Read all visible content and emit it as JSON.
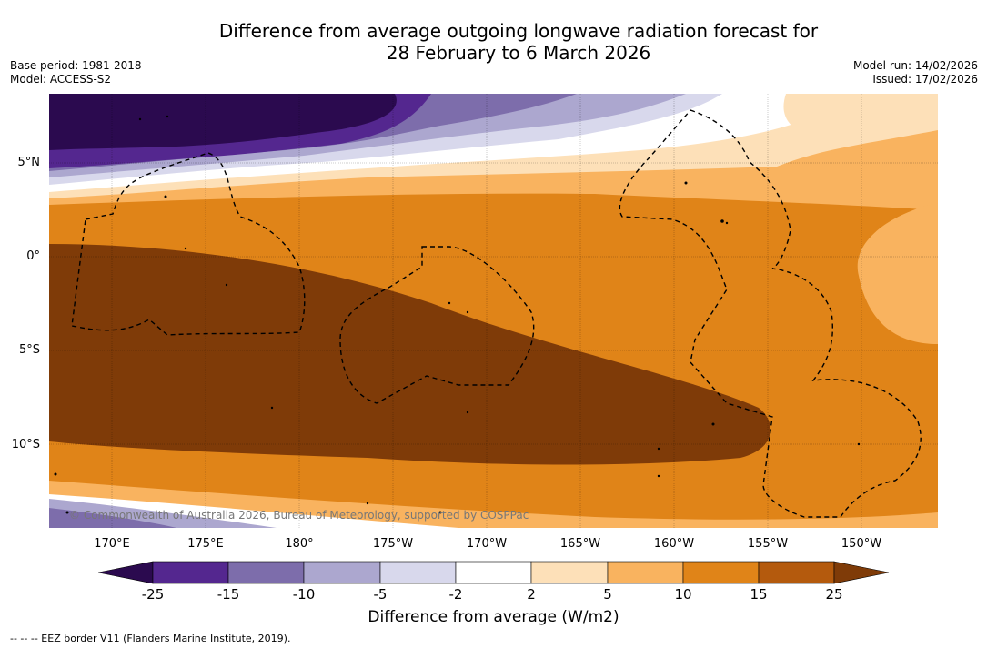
{
  "title": {
    "line1": "Difference from average outgoing longwave radiation forecast for",
    "line2": "28 February to 6 March 2026"
  },
  "meta": {
    "base_period": "Base period: 1981-2018",
    "model": "Model: ACCESS-S2",
    "model_run": "Model run: 14/02/2026",
    "issued": "Issued: 17/02/2026"
  },
  "axes": {
    "lat_labels": [
      "5°N",
      "0°",
      "5°S",
      "10°S"
    ],
    "lon_labels": [
      "170°E",
      "175°E",
      "180°",
      "175°W",
      "170°W",
      "165°W",
      "160°W",
      "155°W",
      "150°W"
    ]
  },
  "colorbar": {
    "ticks": [
      "-25",
      "-15",
      "-10",
      "-5",
      "-2",
      "2",
      "5",
      "10",
      "15",
      "25"
    ],
    "colors": [
      "#2b0a4f",
      "#54278f",
      "#7d6dab",
      "#aca7cf",
      "#d8d8ec",
      "#ffffff",
      "#fde0b8",
      "#f9b35f",
      "#e08418",
      "#b45a0d",
      "#7f3b08"
    ],
    "label": "Difference from average (W/m2)"
  },
  "copyright": "© Commonwealth of Australia 2026, Bureau of Meteorology, supported by COSPPac",
  "footnote": "--  --  -- EEZ border V11 (Flanders Marine Institute, 2019)."
}
